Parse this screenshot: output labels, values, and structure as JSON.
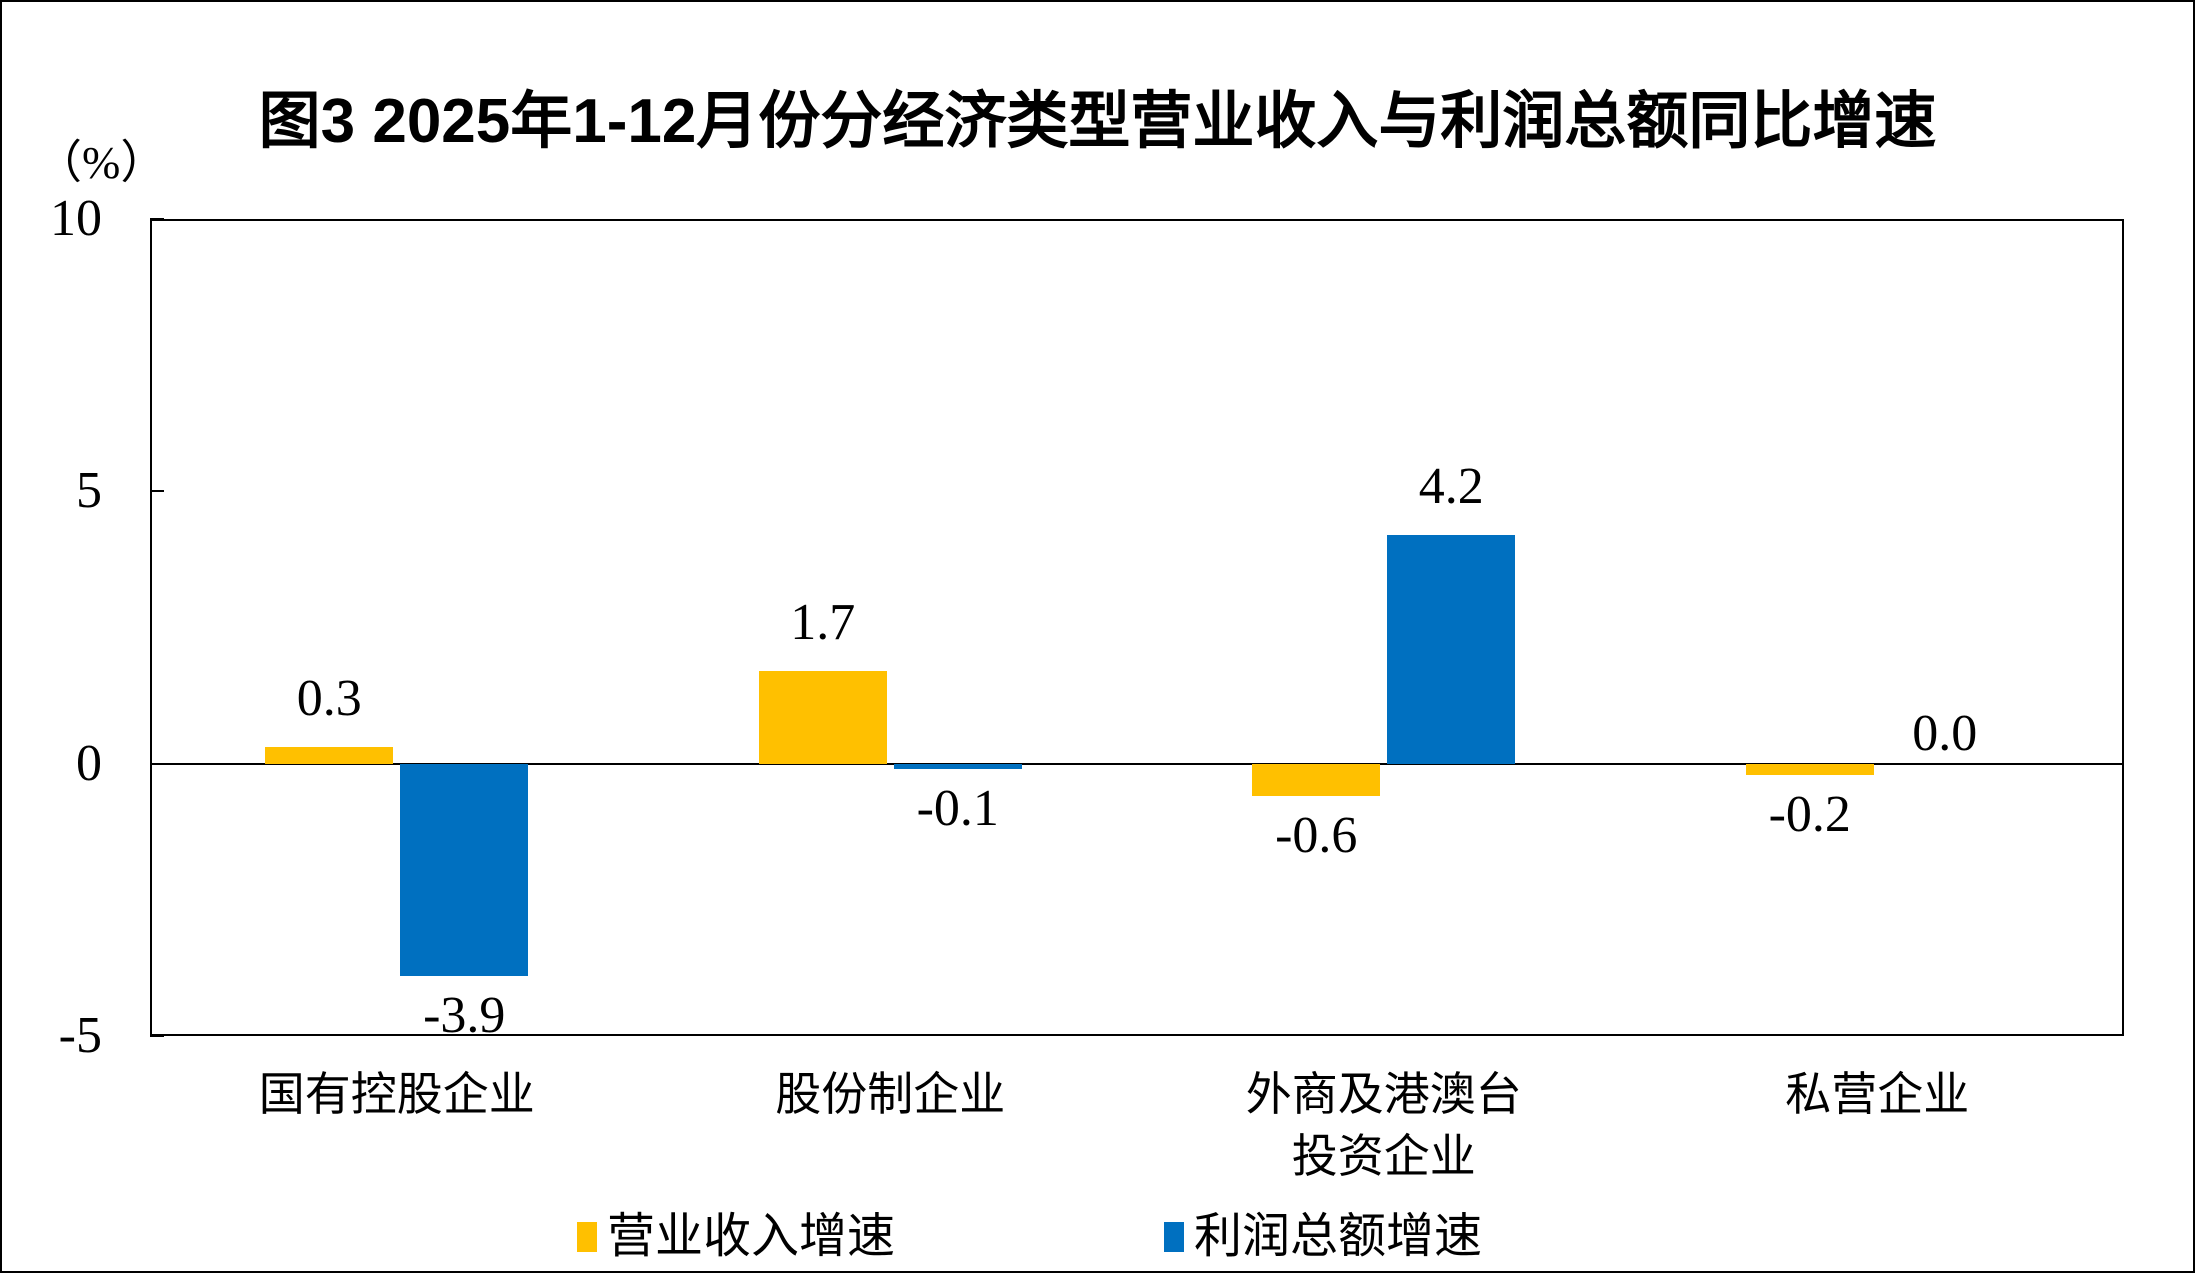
{
  "figure": {
    "title": "图3 2025年1-12月份分经济类型营业收入与利润总额同比增速",
    "unit_label": "（%）"
  },
  "chart_data": {
    "type": "bar",
    "title": "图3 2025年1-12月份分经济类型营业收入与利润总额同比增速",
    "ylabel": "（%）",
    "categories": [
      "国有控股企业",
      "股份制企业",
      "外商及港澳台\n投资企业",
      "私营企业"
    ],
    "series": [
      {
        "name": "营业收入增速",
        "color": "#FFC000",
        "values": [
          0.3,
          1.7,
          -0.6,
          -0.2
        ],
        "labels": [
          "0.3",
          "1.7",
          "-0.6",
          "-0.2"
        ]
      },
      {
        "name": "利润总额增速",
        "color": "#0070C0",
        "values": [
          -3.9,
          -0.1,
          4.2,
          0.0
        ],
        "labels": [
          "-3.9",
          "-0.1",
          "4.2",
          "0.0"
        ]
      }
    ],
    "ylim": [
      -5,
      10
    ],
    "yticks": [
      10,
      5,
      0,
      -5
    ],
    "ytick_labels": [
      "10",
      "5",
      "0",
      "-5"
    ],
    "grid": false,
    "value_labels": true,
    "legend_position": "bottom",
    "axis_color": "#000000",
    "text_color": "#000000"
  }
}
